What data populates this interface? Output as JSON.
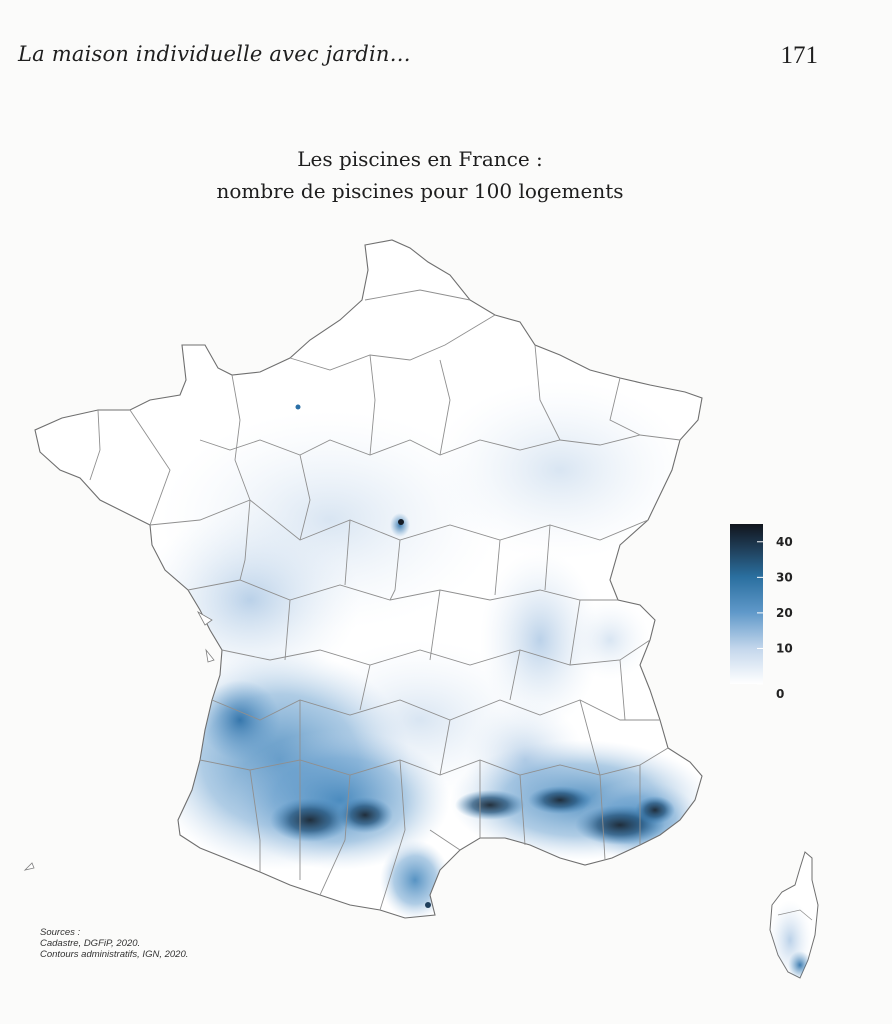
{
  "header": {
    "running_title": "La maison individuelle avec jardin…",
    "page_number": "171"
  },
  "map": {
    "title_line1": "Les piscines en France :",
    "title_line2": "nombre de piscines pour 100 logements",
    "colors": {
      "land": "#ffffff",
      "border": "#8a8a8a",
      "scale_low": "#f2f6fb",
      "scale_mid": "#8fb4d8",
      "scale_high": "#2d76ab",
      "scale_max": "#141a26"
    },
    "legend": {
      "ticks": [
        "40",
        "30",
        "20",
        "10",
        "0"
      ],
      "values": [
        40,
        30,
        20,
        10,
        0
      ],
      "max": 45
    }
  },
  "sources": {
    "line1": "Sources :",
    "line2": "Cadastre, DGFiP, 2020.",
    "line3": "Contours administratifs, IGN, 2020."
  }
}
